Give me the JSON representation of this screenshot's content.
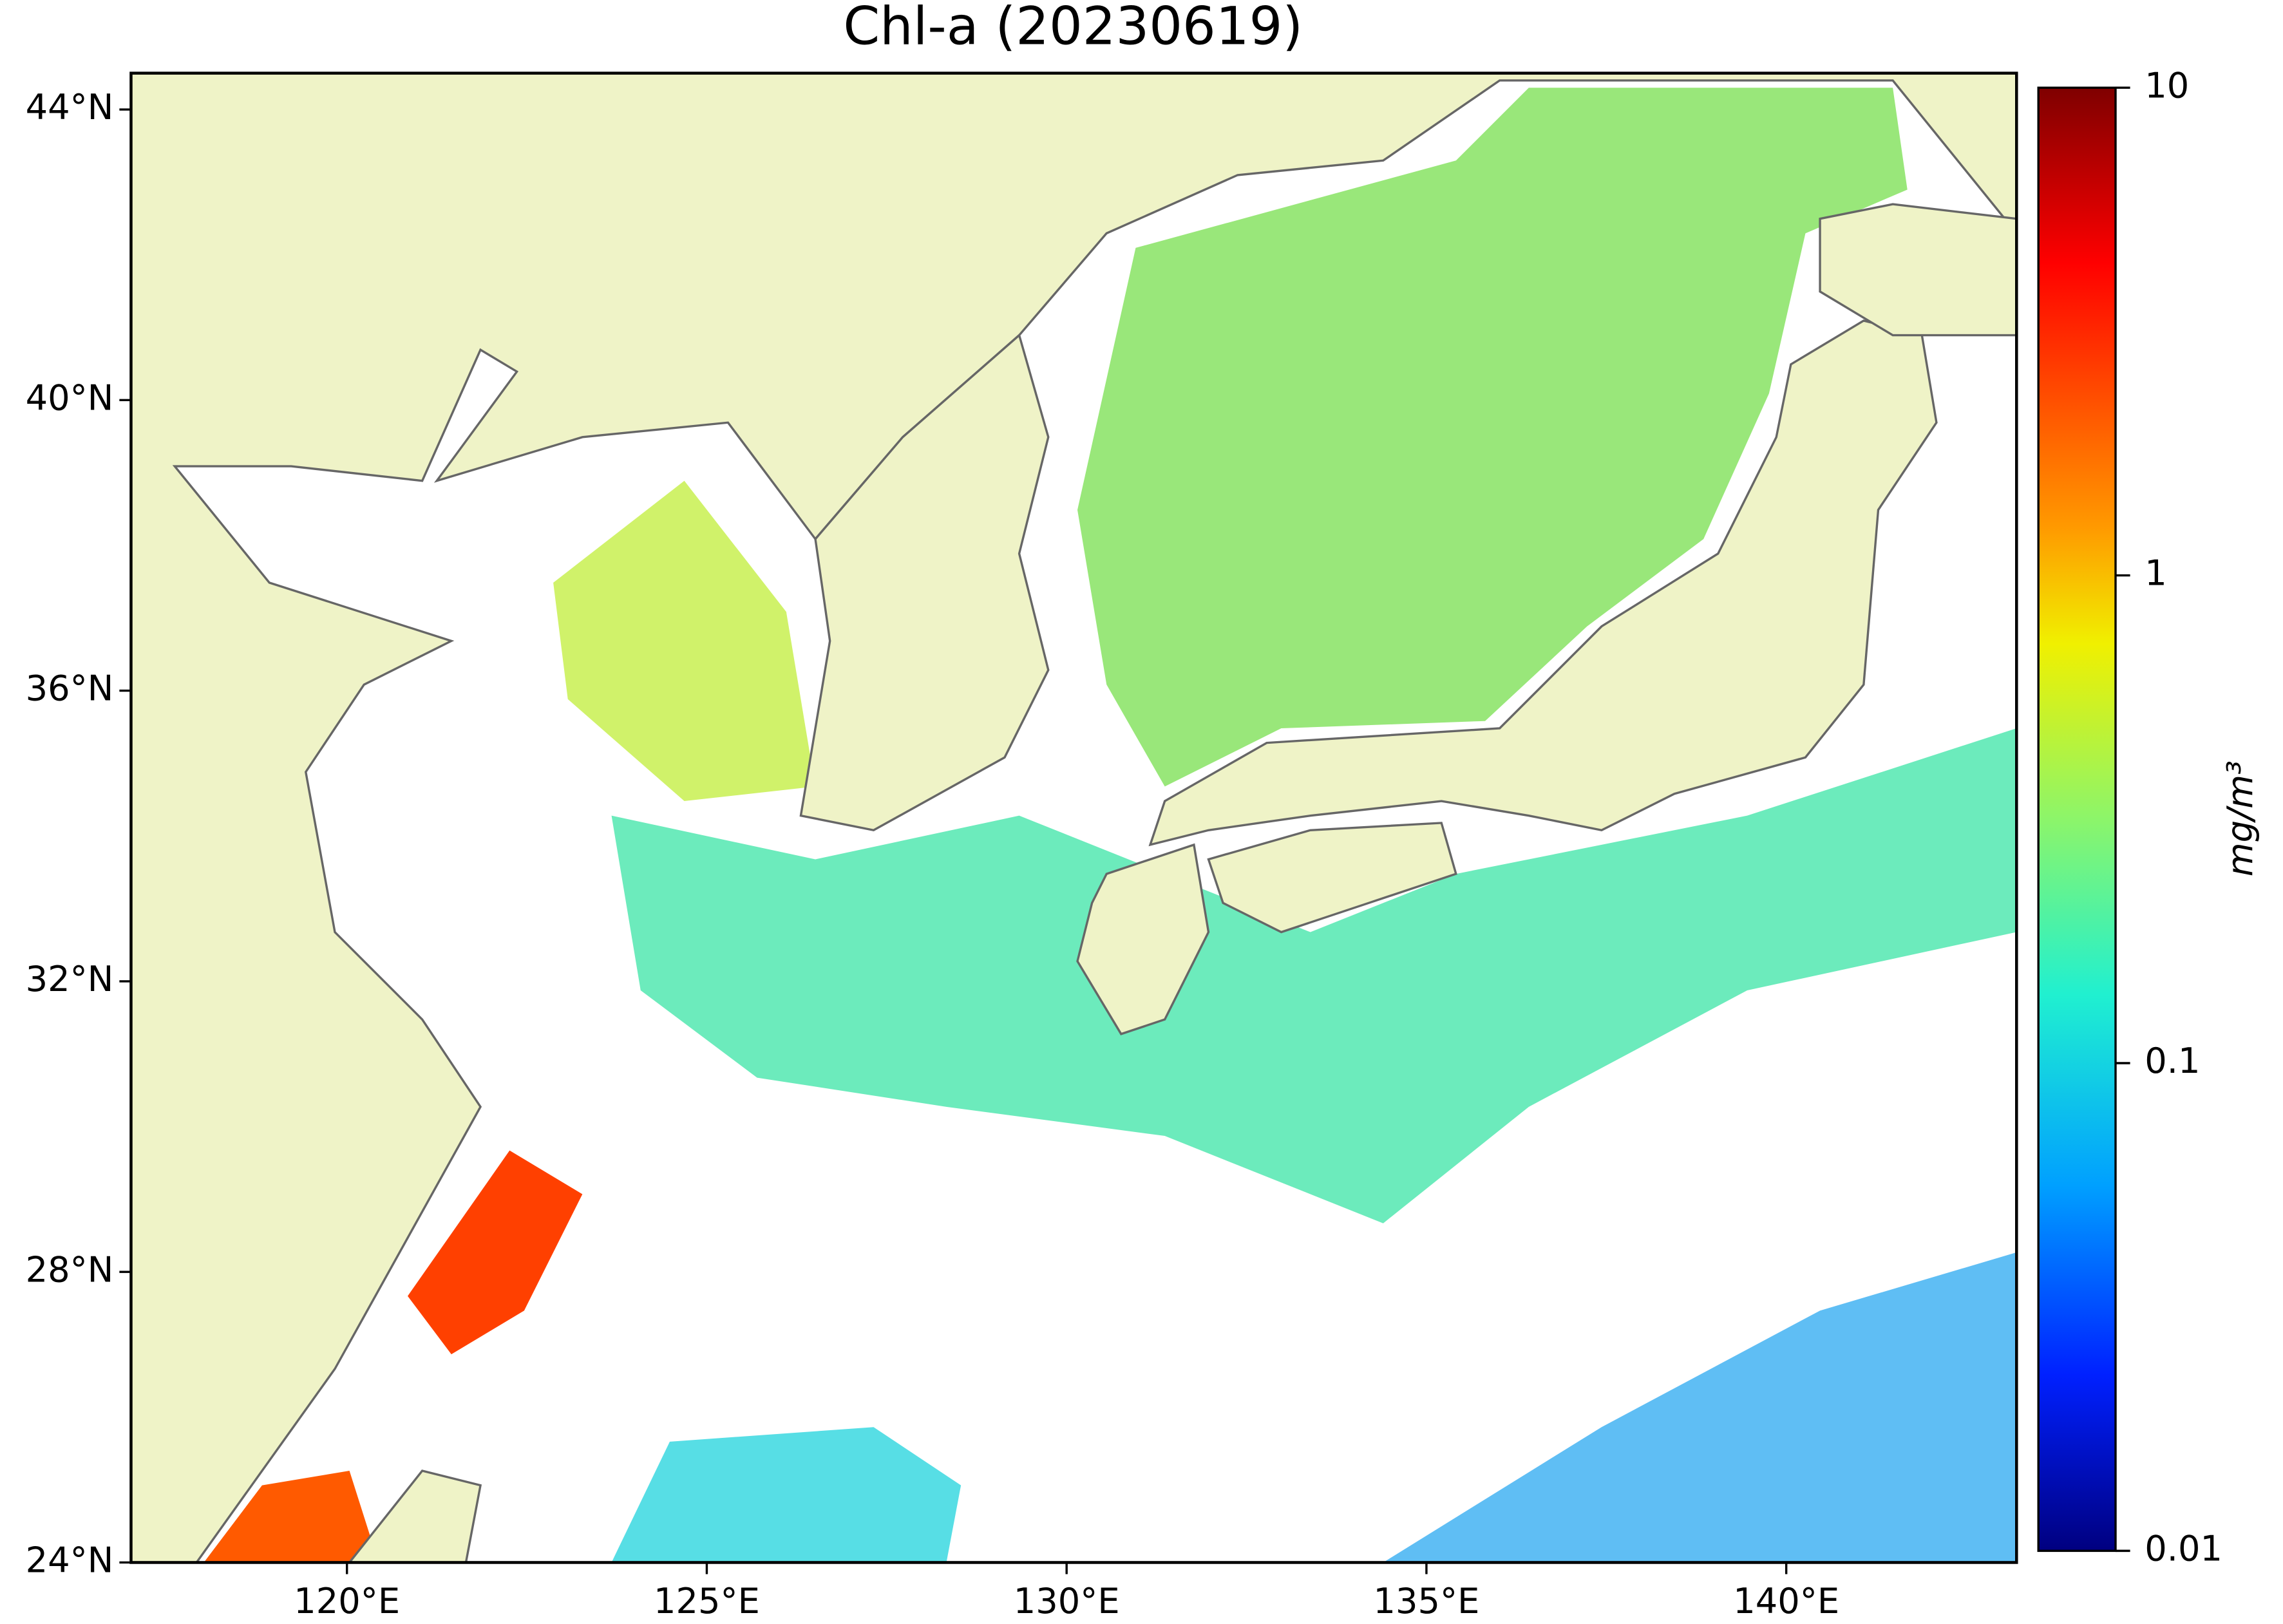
{
  "chart_data": {
    "type": "map",
    "title": "Chl-a (20230619)",
    "xlim": [
      117,
      143.2
    ],
    "ylim": [
      24,
      44.5
    ],
    "xticks": [
      {
        "value": 120,
        "label": "120°E"
      },
      {
        "value": 125,
        "label": "125°E"
      },
      {
        "value": 130,
        "label": "130°E"
      },
      {
        "value": 135,
        "label": "135°E"
      },
      {
        "value": 140,
        "label": "140°E"
      }
    ],
    "yticks": [
      {
        "value": 24,
        "label": "24°N"
      },
      {
        "value": 28,
        "label": "28°N"
      },
      {
        "value": 32,
        "label": "32°N"
      },
      {
        "value": 36,
        "label": "36°N"
      },
      {
        "value": 40,
        "label": "40°N"
      },
      {
        "value": 44,
        "label": "44°N"
      }
    ],
    "colorbar": {
      "label": "mg/m³",
      "log": true,
      "lim": [
        0.01,
        10
      ],
      "ticks": [
        10,
        1,
        0.1,
        0.01
      ]
    }
  }
}
